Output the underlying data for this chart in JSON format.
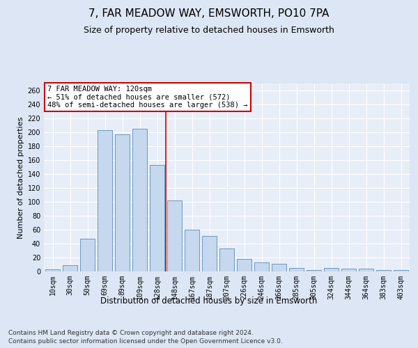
{
  "title1": "7, FAR MEADOW WAY, EMSWORTH, PO10 7PA",
  "title2": "Size of property relative to detached houses in Emsworth",
  "xlabel": "Distribution of detached houses by size in Emsworth",
  "ylabel": "Number of detached properties",
  "categories": [
    "10sqm",
    "30sqm",
    "50sqm",
    "69sqm",
    "89sqm",
    "109sqm",
    "128sqm",
    "148sqm",
    "167sqm",
    "187sqm",
    "207sqm",
    "226sqm",
    "246sqm",
    "266sqm",
    "285sqm",
    "305sqm",
    "324sqm",
    "344sqm",
    "364sqm",
    "383sqm",
    "403sqm"
  ],
  "values": [
    3,
    9,
    47,
    203,
    197,
    205,
    153,
    102,
    60,
    51,
    33,
    18,
    13,
    11,
    5,
    2,
    5,
    4,
    4,
    2,
    2
  ],
  "bar_color": "#c5d8ed",
  "bar_edge_color": "#5b8db8",
  "vline_x_index": 6,
  "vline_color": "#cc0000",
  "annotation_text": "7 FAR MEADOW WAY: 120sqm\n← 51% of detached houses are smaller (572)\n48% of semi-detached houses are larger (538) →",
  "annotation_box_color": "#ffffff",
  "annotation_box_edge": "#cc0000",
  "annotation_fontsize": 7.5,
  "bg_color": "#dce6f5",
  "plot_bg_color": "#e8eef8",
  "ylim": [
    0,
    270
  ],
  "yticks": [
    0,
    20,
    40,
    60,
    80,
    100,
    120,
    140,
    160,
    180,
    200,
    220,
    240,
    260
  ],
  "footnote": "Contains HM Land Registry data © Crown copyright and database right 2024.\nContains public sector information licensed under the Open Government Licence v3.0.",
  "title1_fontsize": 11,
  "title2_fontsize": 9,
  "xlabel_fontsize": 8.5,
  "ylabel_fontsize": 8,
  "tick_fontsize": 7,
  "footnote_fontsize": 6.5
}
